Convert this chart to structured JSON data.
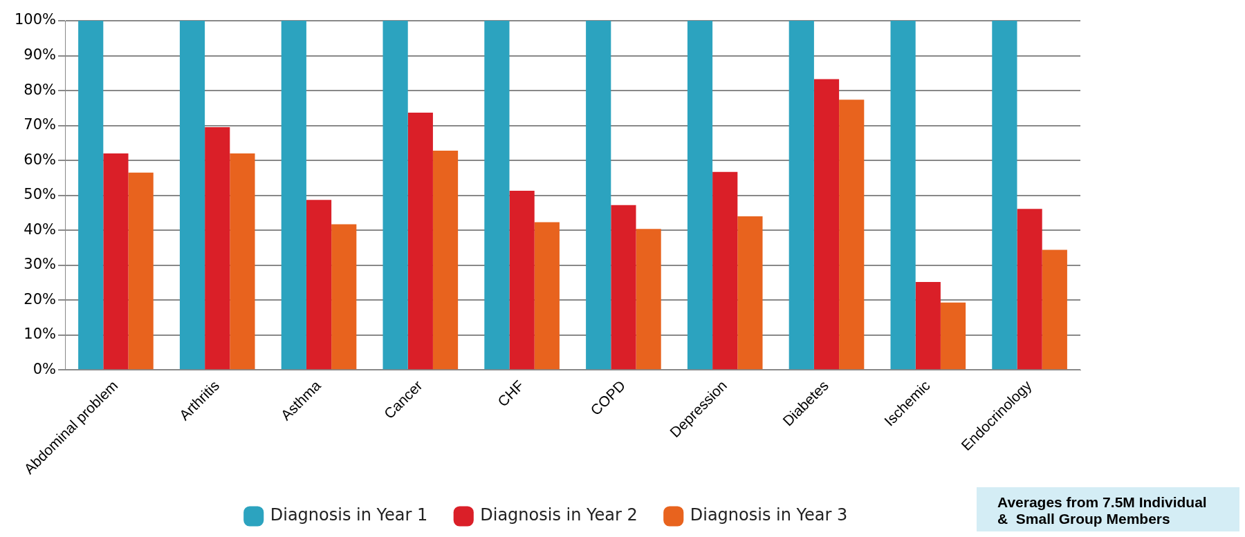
{
  "chart_data": {
    "type": "bar",
    "categories": [
      "Abdominal problem",
      "Arthritis",
      "Asthma",
      "Cancer",
      "CHF",
      "COPD",
      "Depression",
      "Diabetes",
      "Ischemic",
      "Endocrinology"
    ],
    "series": [
      {
        "name": "Diagnosis in Year 1",
        "color": "#2ca3bf",
        "values": [
          100,
          100,
          100,
          100,
          100,
          100,
          100,
          100,
          100,
          100
        ]
      },
      {
        "name": "Diagnosis in Year 2",
        "color": "#da1f28",
        "values": [
          62,
          69.5,
          48.7,
          73.7,
          51.3,
          47.2,
          56.7,
          83.3,
          25.2,
          46.1
        ]
      },
      {
        "name": "Diagnosis in Year 3",
        "color": "#e8631e",
        "values": [
          56.5,
          62,
          41.7,
          62.8,
          42.3,
          40.4,
          44,
          77.4,
          19.3,
          34.4
        ]
      }
    ],
    "ylim": [
      0,
      100
    ],
    "yticks": [
      {
        "value": 0,
        "label": "0%"
      },
      {
        "value": 10,
        "label": "10%"
      },
      {
        "value": 20,
        "label": "20%"
      },
      {
        "value": 30,
        "label": "30%"
      },
      {
        "value": 40,
        "label": "40%"
      },
      {
        "value": 50,
        "label": "50%"
      },
      {
        "value": 60,
        "label": "60%"
      },
      {
        "value": 70,
        "label": "70%"
      },
      {
        "value": 80,
        "label": "80%"
      },
      {
        "value": 90,
        "label": "90%"
      },
      {
        "value": 100,
        "label": "100%"
      }
    ],
    "grid": "y",
    "legend": "bottom",
    "annotations": [
      "Averages from 7.5M Individual\n&  Small Group Members"
    ]
  }
}
